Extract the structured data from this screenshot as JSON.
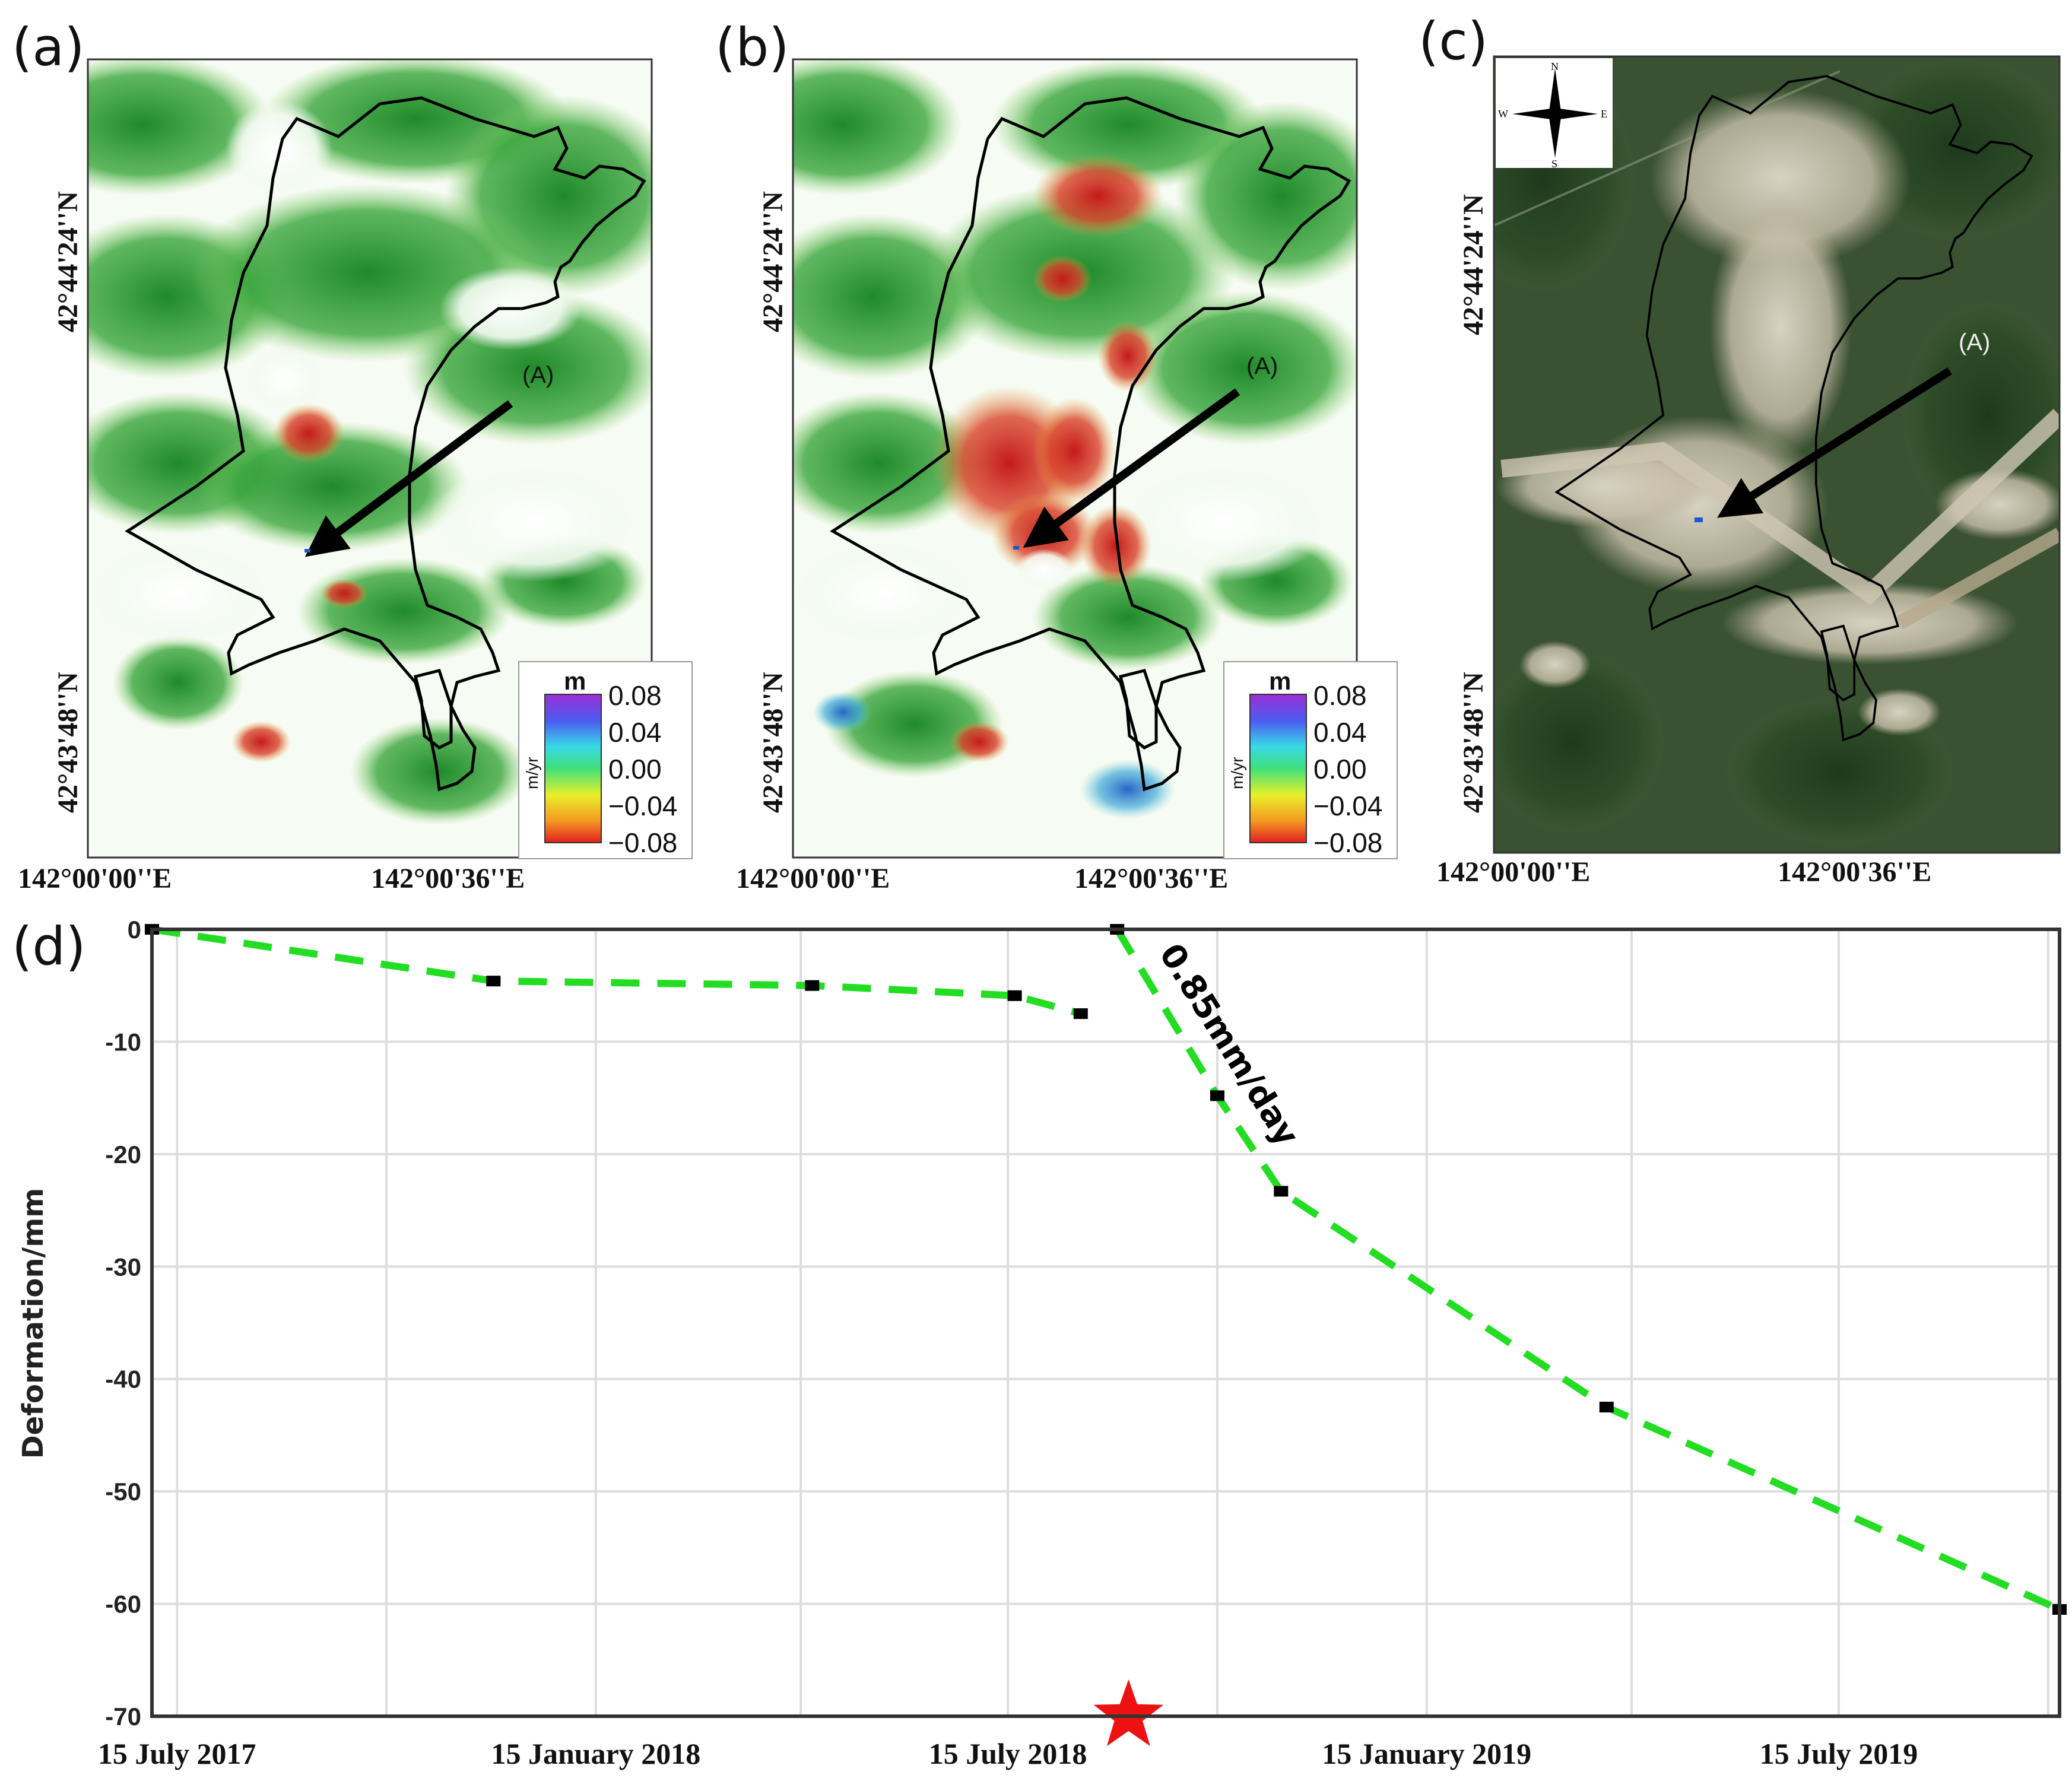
{
  "panels": {
    "a": {
      "label": "(a)"
    },
    "b": {
      "label": "(b)"
    },
    "c": {
      "label": "(c)"
    },
    "d": {
      "label": "(d)"
    }
  },
  "map_axes": {
    "lat_top": "42°44'24''N",
    "lat_bottom": "42°43'48''N",
    "lon_left": "142°00'00''E",
    "lon_right": "142°00'36''E"
  },
  "marker_label": "(A)",
  "colorbar": {
    "title": "m",
    "unit": "m/yr",
    "ticks": [
      "0.08",
      "0.04",
      "0.00",
      "−0.04",
      "−0.08"
    ]
  },
  "compass": {
    "n": "N",
    "s": "S",
    "e": "E",
    "w": "W"
  },
  "colors": {
    "series": "#22dd22",
    "marker": "#000000",
    "star": "#ee1111",
    "grid": "#dddddd"
  },
  "chart_data": {
    "type": "line",
    "ylabel": "Deformation/mm",
    "ylim": [
      -70,
      0
    ],
    "yticks": [
      0,
      -10,
      -20,
      -30,
      -40,
      -50,
      -60,
      -70
    ],
    "xlim": [
      "2017-07-04",
      "2019-10-20"
    ],
    "xticks": [
      {
        "date": "2017-07-15",
        "label": "15 July 2017"
      },
      {
        "date": "2018-01-15",
        "label": "15 January 2018"
      },
      {
        "date": "2018-07-15",
        "label": "15 July 2018"
      },
      {
        "date": "2019-01-15",
        "label": "15 January 2019"
      },
      {
        "date": "2019-07-15",
        "label": "15 July 2019"
      }
    ],
    "grid_dates": [
      "2017-07-15",
      "2017-10-15",
      "2018-01-15",
      "2018-04-15",
      "2018-07-15",
      "2018-10-15",
      "2019-01-15",
      "2019-04-15",
      "2019-07-15",
      "2019-10-15"
    ],
    "segments": [
      [
        {
          "x": "2017-07-04",
          "y": 0
        },
        {
          "x": "2017-12-01",
          "y": -4.6
        },
        {
          "x": "2018-04-20",
          "y": -5.0
        },
        {
          "x": "2018-07-18",
          "y": -5.9
        },
        {
          "x": "2018-08-16",
          "y": -7.5
        }
      ],
      [
        {
          "x": "2018-09-01",
          "y": 0
        },
        {
          "x": "2018-10-15",
          "y": -14.8
        },
        {
          "x": "2018-11-12",
          "y": -23.3
        },
        {
          "x": "2019-04-04",
          "y": -42.5
        },
        {
          "x": "2019-10-20",
          "y": -60.5
        }
      ]
    ],
    "annotation": {
      "text": "0.85mm/day"
    },
    "event_marker": {
      "x": "2018-09-06",
      "y": -70
    }
  }
}
